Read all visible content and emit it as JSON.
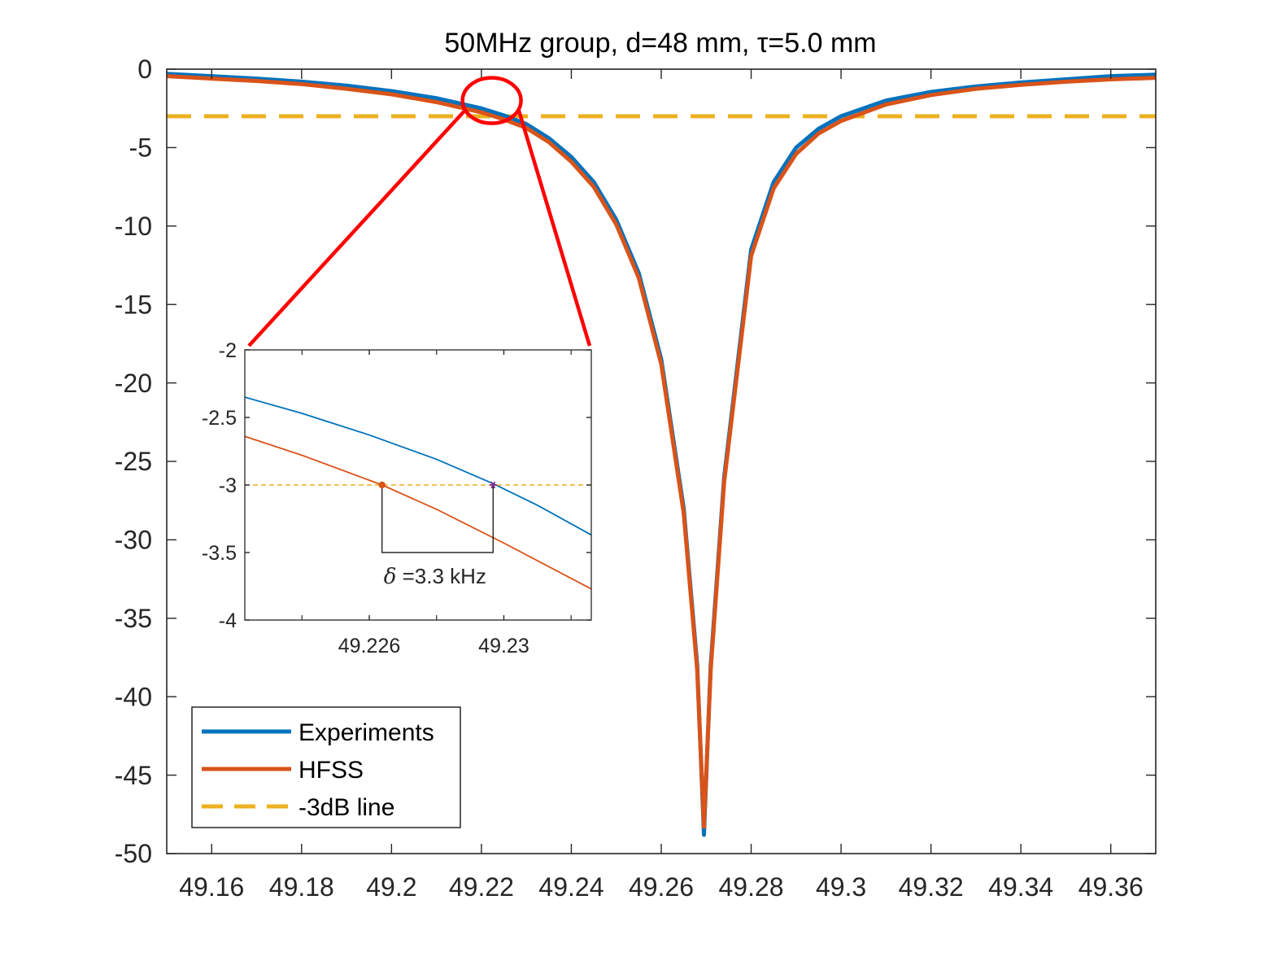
{
  "chart_data": [
    {
      "type": "line",
      "title": "50MHz group, d=48 mm, τ=5.0 mm",
      "xlabel": "",
      "ylabel": "",
      "xlim": [
        49.15,
        49.37
      ],
      "ylim": [
        -50,
        0
      ],
      "grid": false,
      "x_ticks": [
        49.16,
        49.18,
        49.2,
        49.22,
        49.24,
        49.26,
        49.28,
        49.3,
        49.32,
        49.34,
        49.36
      ],
      "x_tick_labels": [
        "49.16",
        "49.18",
        "49.2",
        "49.22",
        "49.24",
        "49.26",
        "49.28",
        "49.3",
        "49.32",
        "49.34",
        "49.36"
      ],
      "y_ticks": [
        0,
        -5,
        -10,
        -15,
        -20,
        -25,
        -30,
        -35,
        -40,
        -45,
        -50
      ],
      "y_tick_labels": [
        "0",
        "-5",
        "-10",
        "-15",
        "-20",
        "-25",
        "-30",
        "-35",
        "-40",
        "-45",
        "-50"
      ],
      "legend": {
        "location": "bottom-left",
        "entries": [
          "Experiments",
          "HFSS",
          "-3dB line"
        ]
      },
      "series": [
        {
          "name": "Experiments",
          "color": "#0072BD",
          "style": "solid",
          "x": [
            49.15,
            49.16,
            49.17,
            49.18,
            49.19,
            49.2,
            49.21,
            49.22,
            49.225,
            49.23,
            49.235,
            49.24,
            49.245,
            49.25,
            49.255,
            49.26,
            49.265,
            49.268,
            49.2695,
            49.271,
            49.274,
            49.28,
            49.285,
            49.29,
            49.295,
            49.3,
            49.31,
            49.32,
            49.33,
            49.34,
            49.35,
            49.36,
            49.37
          ],
          "y": [
            -0.3,
            -0.45,
            -0.6,
            -0.8,
            -1.05,
            -1.4,
            -1.85,
            -2.5,
            -2.95,
            -3.5,
            -4.4,
            -5.6,
            -7.2,
            -9.6,
            -13.0,
            -18.5,
            -28.0,
            -38.0,
            -48.8,
            -38.0,
            -26.0,
            -11.5,
            -7.2,
            -5.0,
            -3.8,
            -3.0,
            -2.0,
            -1.45,
            -1.1,
            -0.85,
            -0.65,
            -0.45,
            -0.35
          ]
        },
        {
          "name": "HFSS",
          "color": "#D95319",
          "style": "solid",
          "x": [
            49.15,
            49.16,
            49.17,
            49.18,
            49.19,
            49.2,
            49.21,
            49.22,
            49.225,
            49.23,
            49.235,
            49.24,
            49.245,
            49.25,
            49.255,
            49.26,
            49.265,
            49.268,
            49.2695,
            49.271,
            49.274,
            49.28,
            49.285,
            49.29,
            49.295,
            49.3,
            49.31,
            49.32,
            49.33,
            49.34,
            49.35,
            49.36,
            49.37
          ],
          "y": [
            -0.45,
            -0.6,
            -0.75,
            -0.95,
            -1.25,
            -1.6,
            -2.1,
            -2.75,
            -3.2,
            -3.75,
            -4.65,
            -5.9,
            -7.5,
            -9.9,
            -13.3,
            -18.8,
            -28.3,
            -38.3,
            -48.3,
            -38.3,
            -26.3,
            -11.9,
            -7.6,
            -5.4,
            -4.1,
            -3.3,
            -2.25,
            -1.65,
            -1.25,
            -1.0,
            -0.8,
            -0.65,
            -0.55
          ]
        },
        {
          "name": "-3dB line",
          "color": "#EDB120",
          "style": "dashed",
          "x": [
            49.15,
            49.37
          ],
          "y": [
            -3,
            -3
          ]
        }
      ]
    },
    {
      "type": "line",
      "title": "",
      "xlabel": "",
      "ylabel": "",
      "xlim": [
        49.2223,
        49.2326
      ],
      "ylim": [
        -4,
        -2
      ],
      "grid": false,
      "x_ticks": [
        49.226,
        49.23
      ],
      "x_tick_labels": [
        "49.226",
        "49.23"
      ],
      "y_ticks": [
        -2,
        -2.5,
        -3,
        -3.5,
        -4
      ],
      "y_tick_labels": [
        "-2",
        "-2.5",
        "-3",
        "-3.5",
        "-4"
      ],
      "annotation": {
        "delta_symbol": "δ",
        "text": " =3.3 kHz",
        "x_start": 49.22638,
        "x_end": 49.22968,
        "y_level": -3,
        "y_bracket": -3.5
      },
      "series": [
        {
          "name": "Experiments",
          "color": "#0072BD",
          "style": "solid",
          "x": [
            49.2223,
            49.224,
            49.226,
            49.228,
            49.22968,
            49.231,
            49.2326
          ],
          "y": [
            -2.35,
            -2.47,
            -2.63,
            -2.81,
            -2.99,
            -3.15,
            -3.37
          ]
        },
        {
          "name": "HFSS",
          "color": "#D95319",
          "style": "solid",
          "x": [
            49.2223,
            49.224,
            49.22638,
            49.228,
            49.23,
            49.2326
          ],
          "y": [
            -2.64,
            -2.78,
            -3.0,
            -3.18,
            -3.43,
            -3.77
          ]
        },
        {
          "name": "-3dB line",
          "color": "#EDB120",
          "style": "dashed",
          "x": [
            49.2223,
            49.2326
          ],
          "y": [
            -3,
            -3
          ]
        }
      ],
      "markers": [
        {
          "x": 49.22638,
          "y": -3,
          "color": "#D95319",
          "shape": "dot"
        },
        {
          "x": 49.22968,
          "y": -3,
          "color": "#7E2F8E",
          "shape": "star"
        }
      ]
    }
  ],
  "zoom_callout": {
    "color": "#FF0000",
    "center_x": 49.2223,
    "center_y": -2,
    "radius_x": 0.0065,
    "radius_y": 1.45
  }
}
